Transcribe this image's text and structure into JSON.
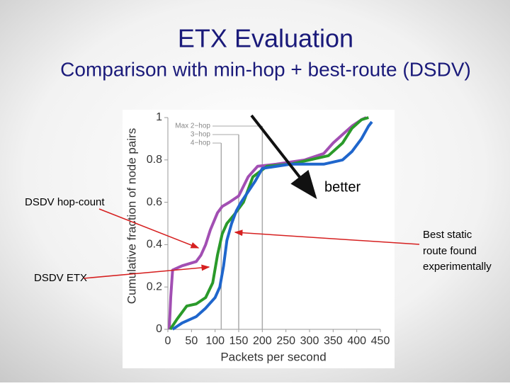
{
  "title": "ETX Evaluation",
  "subtitle": "Comparison with min-hop + best-route (DSDV)",
  "annotations": {
    "hop_count": "DSDV hop-count",
    "etx": "DSDV ETX",
    "better": "better",
    "best_static": [
      "Best static",
      "route found",
      "experimentally"
    ]
  },
  "chart_data": {
    "type": "line",
    "xlabel": "Packets per second",
    "ylabel": "Cumulative fraction of node pairs",
    "xlim": [
      0,
      450
    ],
    "ylim": [
      0,
      1
    ],
    "xticks": [
      0,
      50,
      100,
      150,
      200,
      250,
      300,
      350,
      400,
      450
    ],
    "yticks": [
      0,
      0.2,
      0.4,
      0.6,
      0.8,
      1
    ],
    "reference_lines": [
      {
        "label": "Max 2−hop",
        "value": 200
      },
      {
        "label": "3−hop",
        "value": 150
      },
      {
        "label": "4−hop",
        "value": 113
      }
    ],
    "series": [
      {
        "color": "#a24fb3",
        "x": [
          3,
          6,
          10,
          30,
          60,
          70,
          80,
          90,
          105,
          115,
          130,
          150,
          170,
          190,
          230,
          290,
          330,
          350,
          370,
          390,
          410,
          420
        ],
        "values": [
          0,
          0.15,
          0.28,
          0.3,
          0.32,
          0.35,
          0.4,
          0.47,
          0.55,
          0.58,
          0.6,
          0.63,
          0.72,
          0.77,
          0.78,
          0.8,
          0.83,
          0.88,
          0.92,
          0.96,
          0.99,
          1
        ]
      },
      {
        "color": "#2a9a2a",
        "x": [
          5,
          20,
          40,
          60,
          80,
          95,
          105,
          115,
          125,
          140,
          160,
          180,
          210,
          260,
          300,
          340,
          370,
          390,
          410,
          425
        ],
        "values": [
          0,
          0.05,
          0.11,
          0.12,
          0.15,
          0.22,
          0.35,
          0.45,
          0.5,
          0.54,
          0.6,
          0.72,
          0.77,
          0.78,
          0.8,
          0.82,
          0.88,
          0.95,
          0.99,
          1
        ]
      },
      {
        "color": "#1f66cc",
        "x": [
          10,
          30,
          60,
          80,
          100,
          110,
          118,
          125,
          135,
          145,
          155,
          170,
          185,
          200,
          260,
          330,
          370,
          390,
          410,
          425,
          432
        ],
        "values": [
          0,
          0.03,
          0.06,
          0.1,
          0.15,
          0.2,
          0.3,
          0.42,
          0.5,
          0.56,
          0.6,
          0.65,
          0.7,
          0.76,
          0.78,
          0.78,
          0.8,
          0.84,
          0.9,
          0.96,
          0.98
        ]
      }
    ]
  }
}
